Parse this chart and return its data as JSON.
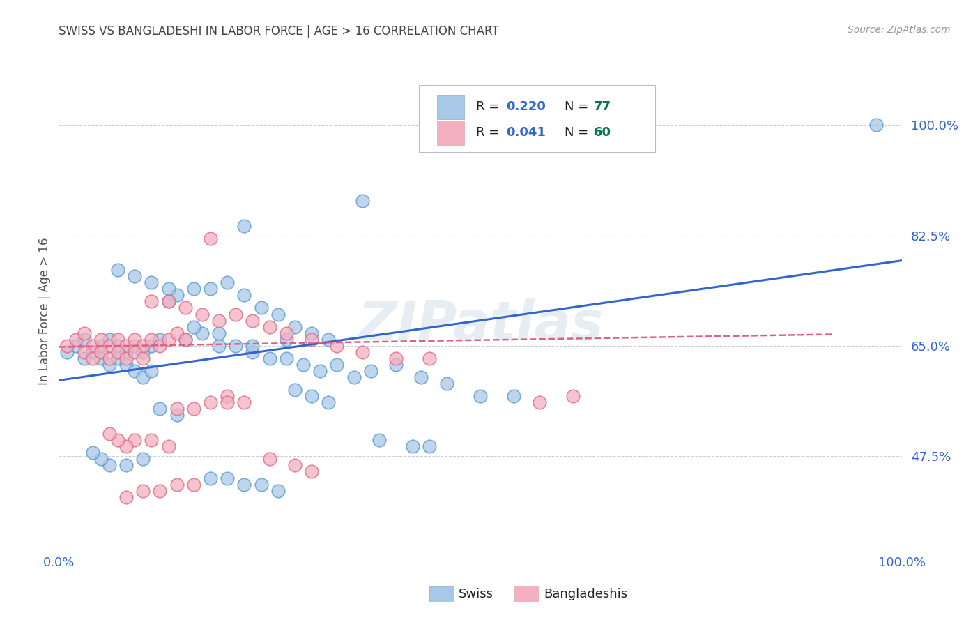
{
  "title": "SWISS VS BANGLADESHI IN LABOR FORCE | AGE > 16 CORRELATION CHART",
  "source": "Source: ZipAtlas.com",
  "ylabel": "In Labor Force | Age > 16",
  "watermark": "ZIPatlas",
  "swiss_R": "0.220",
  "swiss_N": "77",
  "bangladeshi_R": "0.041",
  "bangladeshi_N": "60",
  "swiss_color": "#a8c8e8",
  "bangladeshi_color": "#f4b0c0",
  "swiss_line_color": "#3366cc",
  "bangladeshi_line_color": "#e06080",
  "background_color": "#ffffff",
  "grid_color": "#ccccdd",
  "title_color": "#444444",
  "axis_tick_color": "#3366cc",
  "legend_R_color": "#3366cc",
  "legend_N_color": "#007744",
  "swiss_label_color": "#000000",
  "xlim": [
    0.0,
    1.0
  ],
  "ylim_min": 0.33,
  "ylim_max": 1.08,
  "ytick_vals": [
    0.475,
    0.65,
    0.825,
    1.0
  ],
  "ytick_labels": [
    "47.5%",
    "65.0%",
    "82.5%",
    "100.0%"
  ],
  "swiss_line_x": [
    0.0,
    1.0
  ],
  "swiss_line_y": [
    0.595,
    0.785
  ],
  "bang_line_x": [
    0.0,
    0.92
  ],
  "bang_line_y": [
    0.648,
    0.668
  ],
  "swiss_x": [
    0.36,
    0.97,
    0.22,
    0.01,
    0.02,
    0.03,
    0.04,
    0.05,
    0.06,
    0.07,
    0.08,
    0.09,
    0.1,
    0.11,
    0.12,
    0.03,
    0.05,
    0.06,
    0.07,
    0.08,
    0.09,
    0.1,
    0.11,
    0.13,
    0.14,
    0.16,
    0.18,
    0.2,
    0.22,
    0.24,
    0.26,
    0.28,
    0.3,
    0.32,
    0.15,
    0.17,
    0.19,
    0.21,
    0.23,
    0.25,
    0.27,
    0.29,
    0.31,
    0.33,
    0.35,
    0.37,
    0.4,
    0.43,
    0.46,
    0.5,
    0.54,
    0.38,
    0.42,
    0.44,
    0.28,
    0.3,
    0.32,
    0.18,
    0.2,
    0.22,
    0.24,
    0.26,
    0.12,
    0.14,
    0.1,
    0.08,
    0.06,
    0.05,
    0.04,
    0.07,
    0.09,
    0.11,
    0.13,
    0.16,
    0.19,
    0.23,
    0.27
  ],
  "swiss_y": [
    0.88,
    1.0,
    0.84,
    0.64,
    0.65,
    0.66,
    0.64,
    0.65,
    0.66,
    0.65,
    0.64,
    0.65,
    0.64,
    0.65,
    0.66,
    0.63,
    0.63,
    0.62,
    0.63,
    0.62,
    0.61,
    0.6,
    0.61,
    0.72,
    0.73,
    0.74,
    0.74,
    0.75,
    0.73,
    0.71,
    0.7,
    0.68,
    0.67,
    0.66,
    0.66,
    0.67,
    0.65,
    0.65,
    0.64,
    0.63,
    0.63,
    0.62,
    0.61,
    0.62,
    0.6,
    0.61,
    0.62,
    0.6,
    0.59,
    0.57,
    0.57,
    0.5,
    0.49,
    0.49,
    0.58,
    0.57,
    0.56,
    0.44,
    0.44,
    0.43,
    0.43,
    0.42,
    0.55,
    0.54,
    0.47,
    0.46,
    0.46,
    0.47,
    0.48,
    0.77,
    0.76,
    0.75,
    0.74,
    0.68,
    0.67,
    0.65,
    0.66
  ],
  "bang_x": [
    0.01,
    0.02,
    0.03,
    0.04,
    0.05,
    0.06,
    0.07,
    0.08,
    0.09,
    0.1,
    0.11,
    0.12,
    0.13,
    0.14,
    0.15,
    0.03,
    0.04,
    0.05,
    0.06,
    0.07,
    0.08,
    0.09,
    0.1,
    0.11,
    0.13,
    0.15,
    0.17,
    0.19,
    0.21,
    0.23,
    0.25,
    0.27,
    0.3,
    0.33,
    0.36,
    0.4,
    0.44,
    0.2,
    0.22,
    0.14,
    0.16,
    0.18,
    0.25,
    0.28,
    0.57,
    0.61,
    0.3,
    0.11,
    0.13,
    0.09,
    0.08,
    0.07,
    0.06,
    0.16,
    0.14,
    0.12,
    0.1,
    0.08,
    0.18,
    0.2
  ],
  "bang_y": [
    0.65,
    0.66,
    0.67,
    0.65,
    0.66,
    0.65,
    0.66,
    0.65,
    0.66,
    0.65,
    0.66,
    0.65,
    0.66,
    0.67,
    0.66,
    0.64,
    0.63,
    0.64,
    0.63,
    0.64,
    0.63,
    0.64,
    0.63,
    0.72,
    0.72,
    0.71,
    0.7,
    0.69,
    0.7,
    0.69,
    0.68,
    0.67,
    0.66,
    0.65,
    0.64,
    0.63,
    0.63,
    0.57,
    0.56,
    0.55,
    0.55,
    0.56,
    0.47,
    0.46,
    0.56,
    0.57,
    0.45,
    0.5,
    0.49,
    0.5,
    0.49,
    0.5,
    0.51,
    0.43,
    0.43,
    0.42,
    0.42,
    0.41,
    0.82,
    0.56
  ]
}
